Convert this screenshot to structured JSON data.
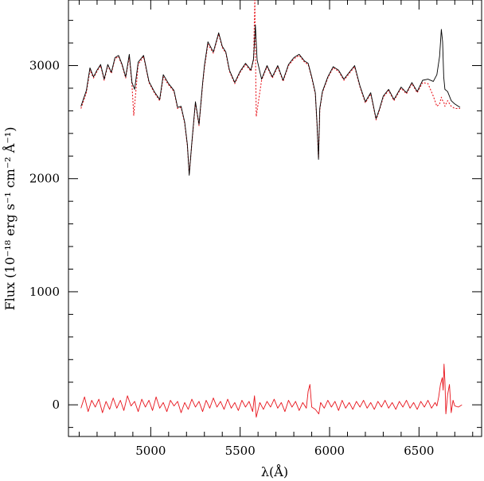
{
  "chart_data": {
    "type": "line",
    "title": "",
    "xlabel": "λ(Å)",
    "ylabel": "Flux (10⁻¹⁸ erg s⁻¹ cm⁻² Å⁻¹)",
    "xlim": [
      4540,
      6850
    ],
    "ylim": [
      -280,
      3580
    ],
    "xticks": [
      5000,
      5500,
      6000,
      6500
    ],
    "yticks": [
      0,
      1000,
      2000,
      3000
    ],
    "xtick_labels": [
      "5000",
      "5500",
      "6000",
      "6500"
    ],
    "ytick_labels": [
      "0",
      "1000",
      "2000",
      "3000"
    ],
    "grid": false,
    "legend": "none",
    "series": [
      {
        "role": "observed spectrum",
        "color": "#000000",
        "style": "solid",
        "x": [
          4610,
          4640,
          4660,
          4680,
          4700,
          4720,
          4740,
          4760,
          4780,
          4800,
          4820,
          4840,
          4860,
          4880,
          4895,
          4910,
          4930,
          4960,
          4990,
          5020,
          5050,
          5070,
          5100,
          5130,
          5150,
          5170,
          5190,
          5205,
          5215,
          5230,
          5250,
          5270,
          5290,
          5300,
          5320,
          5350,
          5380,
          5400,
          5420,
          5440,
          5470,
          5500,
          5530,
          5560,
          5575,
          5585,
          5595,
          5620,
          5650,
          5680,
          5710,
          5740,
          5770,
          5800,
          5830,
          5860,
          5880,
          5900,
          5920,
          5930,
          5938,
          5945,
          5960,
          5990,
          6020,
          6050,
          6080,
          6110,
          6140,
          6170,
          6200,
          6230,
          6260,
          6280,
          6300,
          6330,
          6360,
          6400,
          6430,
          6460,
          6490,
          6520,
          6550,
          6580,
          6600,
          6615,
          6625,
          6632,
          6638,
          6645,
          6660,
          6680,
          6700,
          6730
        ],
        "y": [
          2640,
          2780,
          2980,
          2900,
          2960,
          3010,
          2880,
          3010,
          2940,
          3070,
          3090,
          3010,
          2900,
          3100,
          2850,
          2790,
          3030,
          3090,
          2860,
          2770,
          2700,
          2920,
          2840,
          2780,
          2630,
          2640,
          2500,
          2300,
          2030,
          2320,
          2680,
          2480,
          2840,
          3000,
          3210,
          3120,
          3290,
          3170,
          3120,
          2960,
          2850,
          2950,
          3020,
          2960,
          3060,
          3360,
          3050,
          2880,
          3000,
          2900,
          3000,
          2870,
          3010,
          3070,
          3100,
          3040,
          3020,
          2900,
          2760,
          2480,
          2170,
          2620,
          2770,
          2900,
          2990,
          2960,
          2880,
          2940,
          3000,
          2820,
          2680,
          2760,
          2530,
          2620,
          2730,
          2790,
          2700,
          2810,
          2760,
          2850,
          2770,
          2870,
          2880,
          2860,
          2920,
          3080,
          3320,
          3210,
          2900,
          2790,
          2770,
          2690,
          2660,
          2630
        ]
      },
      {
        "role": "model fit",
        "color": "#e8141c",
        "style": "dotted",
        "x": [
          4610,
          4640,
          4660,
          4680,
          4700,
          4720,
          4740,
          4760,
          4780,
          4800,
          4820,
          4840,
          4860,
          4880,
          4895,
          4905,
          4930,
          4960,
          4990,
          5020,
          5050,
          5070,
          5100,
          5130,
          5150,
          5170,
          5190,
          5205,
          5215,
          5230,
          5250,
          5270,
          5290,
          5300,
          5320,
          5350,
          5380,
          5400,
          5420,
          5440,
          5470,
          5500,
          5530,
          5560,
          5575,
          5582,
          5590,
          5620,
          5650,
          5680,
          5710,
          5740,
          5770,
          5800,
          5830,
          5860,
          5880,
          5900,
          5920,
          5930,
          5938,
          5945,
          5960,
          5990,
          6020,
          6050,
          6080,
          6110,
          6140,
          6170,
          6200,
          6230,
          6260,
          6280,
          6300,
          6330,
          6360,
          6400,
          6430,
          6460,
          6490,
          6520,
          6550,
          6580,
          6600,
          6615,
          6625,
          6632,
          6638,
          6645,
          6660,
          6680,
          6700,
          6730
        ],
        "y": [
          2620,
          2760,
          2960,
          2890,
          2950,
          3000,
          2870,
          3000,
          2930,
          3060,
          3080,
          3000,
          2890,
          3080,
          2830,
          2560,
          3010,
          3080,
          2850,
          2760,
          2690,
          2900,
          2830,
          2770,
          2620,
          2630,
          2490,
          2290,
          2040,
          2310,
          2670,
          2470,
          2830,
          2980,
          3190,
          3110,
          3280,
          3160,
          3110,
          2950,
          2840,
          2940,
          3010,
          2950,
          3050,
          3580,
          2550,
          2870,
          2990,
          2890,
          2990,
          2860,
          3000,
          3060,
          3090,
          3030,
          3010,
          2890,
          2750,
          2470,
          2180,
          2610,
          2760,
          2890,
          2980,
          2950,
          2870,
          2930,
          2990,
          2810,
          2670,
          2750,
          2520,
          2610,
          2720,
          2780,
          2690,
          2800,
          2750,
          2840,
          2760,
          2850,
          2840,
          2730,
          2640,
          2660,
          2720,
          2690,
          2680,
          2640,
          2690,
          2640,
          2620,
          2620
        ]
      },
      {
        "role": "residuals",
        "color": "#e8141c",
        "style": "solid",
        "x": [
          4610,
          4630,
          4650,
          4670,
          4690,
          4710,
          4730,
          4750,
          4770,
          4790,
          4810,
          4830,
          4850,
          4870,
          4890,
          4910,
          4930,
          4950,
          4970,
          4990,
          5010,
          5030,
          5050,
          5070,
          5090,
          5110,
          5130,
          5150,
          5170,
          5190,
          5210,
          5230,
          5250,
          5270,
          5290,
          5310,
          5330,
          5350,
          5370,
          5390,
          5410,
          5430,
          5450,
          5470,
          5490,
          5510,
          5530,
          5550,
          5570,
          5580,
          5590,
          5610,
          5630,
          5650,
          5670,
          5690,
          5710,
          5730,
          5750,
          5770,
          5790,
          5810,
          5830,
          5850,
          5870,
          5880,
          5890,
          5900,
          5920,
          5940,
          5950,
          5970,
          5990,
          6010,
          6030,
          6050,
          6070,
          6090,
          6110,
          6130,
          6150,
          6170,
          6190,
          6210,
          6230,
          6250,
          6270,
          6290,
          6310,
          6330,
          6350,
          6370,
          6390,
          6410,
          6430,
          6450,
          6470,
          6490,
          6510,
          6530,
          6550,
          6570,
          6590,
          6600,
          6610,
          6620,
          6630,
          6635,
          6640,
          6645,
          6650,
          6660,
          6670,
          6680,
          6690,
          6700,
          6720,
          6740
        ],
        "y": [
          -30,
          70,
          -60,
          40,
          -20,
          50,
          -70,
          30,
          -40,
          60,
          -30,
          40,
          -50,
          80,
          -10,
          30,
          -60,
          50,
          -20,
          40,
          -50,
          70,
          -30,
          20,
          -60,
          40,
          -10,
          30,
          -70,
          20,
          -40,
          50,
          -20,
          30,
          -60,
          40,
          -30,
          60,
          -20,
          30,
          -40,
          50,
          -30,
          20,
          -50,
          40,
          -20,
          30,
          -60,
          80,
          -110,
          20,
          -40,
          30,
          -20,
          50,
          -30,
          20,
          -60,
          40,
          -20,
          30,
          -50,
          20,
          -30,
          120,
          180,
          -20,
          -40,
          -80,
          20,
          -30,
          40,
          -20,
          30,
          -50,
          40,
          -30,
          20,
          -40,
          30,
          -20,
          40,
          -30,
          20,
          -40,
          30,
          -20,
          40,
          -30,
          20,
          -40,
          30,
          -20,
          40,
          -30,
          20,
          -40,
          30,
          -20,
          40,
          -30,
          20,
          -10,
          70,
          180,
          240,
          130,
          360,
          210,
          -80,
          90,
          180,
          -70,
          40,
          -10,
          -20,
          0
        ]
      }
    ]
  }
}
